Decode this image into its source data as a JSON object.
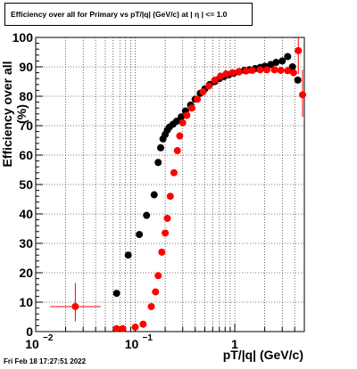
{
  "title": "Efficiency over all for Primary vs pT/|q| (GeV/c) at |  η | <= 1.0",
  "footer": "Fri Feb 18 17:27:51 2022",
  "chart_data": {
    "type": "scatter",
    "title": "Efficiency over all for Primary vs pT/|q| (GeV/c) at |  η | <= 1.0",
    "xlabel": "pT/|q| (GeV/c)",
    "ylabel": "Efficiency over all (%)",
    "xscale": "log",
    "xlim": [
      0.01,
      5
    ],
    "ylim": [
      0,
      100
    ],
    "grid": true,
    "yticks": [
      "0",
      "10",
      "20",
      "30",
      "40",
      "50",
      "60",
      "70",
      "80",
      "90",
      "100"
    ],
    "xtick_labels": {
      "min": "10",
      "min_exp": "−2",
      "mid": "10",
      "mid_exp": "−1",
      "one": "1"
    },
    "series": [
      {
        "color": "#000000",
        "points": [
          [
            0.065,
            13
          ],
          [
            0.085,
            26
          ],
          [
            0.11,
            33
          ],
          [
            0.13,
            39.5
          ],
          [
            0.155,
            46.5
          ],
          [
            0.17,
            57.5
          ],
          [
            0.18,
            62.5
          ],
          [
            0.19,
            65.5
          ],
          [
            0.2,
            67
          ],
          [
            0.21,
            68.5
          ],
          [
            0.22,
            69.5
          ],
          [
            0.24,
            70.5
          ],
          [
            0.26,
            71.5
          ],
          [
            0.29,
            73
          ],
          [
            0.32,
            75
          ],
          [
            0.36,
            77
          ],
          [
            0.4,
            79
          ],
          [
            0.45,
            81
          ],
          [
            0.5,
            82.5
          ],
          [
            0.56,
            84
          ],
          [
            0.63,
            85
          ],
          [
            0.7,
            86
          ],
          [
            0.78,
            86.7
          ],
          [
            0.87,
            87.3
          ],
          [
            0.97,
            87.8
          ],
          [
            1.1,
            88.3
          ],
          [
            1.25,
            88.8
          ],
          [
            1.4,
            89
          ],
          [
            1.6,
            89.4
          ],
          [
            1.8,
            89.8
          ],
          [
            2.0,
            90.2
          ],
          [
            2.3,
            90.8
          ],
          [
            2.6,
            91.5
          ],
          [
            3.0,
            92
          ],
          [
            3.4,
            93.5
          ],
          [
            3.8,
            90
          ],
          [
            4.3,
            85.5
          ]
        ]
      },
      {
        "color": "#ff0000",
        "points": [
          [
            0.025,
            8.5
          ],
          [
            0.065,
            1
          ],
          [
            0.075,
            1
          ],
          [
            0.1,
            1.5
          ],
          [
            0.12,
            2.5
          ],
          [
            0.145,
            8.5
          ],
          [
            0.16,
            13.5
          ],
          [
            0.17,
            19
          ],
          [
            0.185,
            27
          ],
          [
            0.2,
            33.5
          ],
          [
            0.21,
            38.5
          ],
          [
            0.225,
            46
          ],
          [
            0.245,
            54
          ],
          [
            0.265,
            61.5
          ],
          [
            0.28,
            66.5
          ],
          [
            0.3,
            71
          ],
          [
            0.33,
            73.5
          ],
          [
            0.37,
            76
          ],
          [
            0.42,
            79
          ],
          [
            0.48,
            81.5
          ],
          [
            0.55,
            83.5
          ],
          [
            0.63,
            85.5
          ],
          [
            0.72,
            86.8
          ],
          [
            0.82,
            87.6
          ],
          [
            0.95,
            88
          ],
          [
            1.1,
            88.4
          ],
          [
            1.3,
            88.6
          ],
          [
            1.5,
            88.8
          ],
          [
            1.8,
            89
          ],
          [
            2.1,
            89
          ],
          [
            2.5,
            89
          ],
          [
            2.9,
            88.8
          ],
          [
            3.4,
            88.7
          ],
          [
            3.9,
            88
          ],
          [
            4.35,
            95.5
          ],
          [
            4.8,
            80.5
          ]
        ],
        "xerr_points": [
          [
            0.025,
            0.014,
            0.045
          ]
        ],
        "yerr_points": [
          [
            0.025,
            3.5,
            16.5
          ],
          [
            4.35,
            87.5,
            100
          ],
          [
            4.8,
            73,
            89
          ]
        ]
      }
    ]
  }
}
